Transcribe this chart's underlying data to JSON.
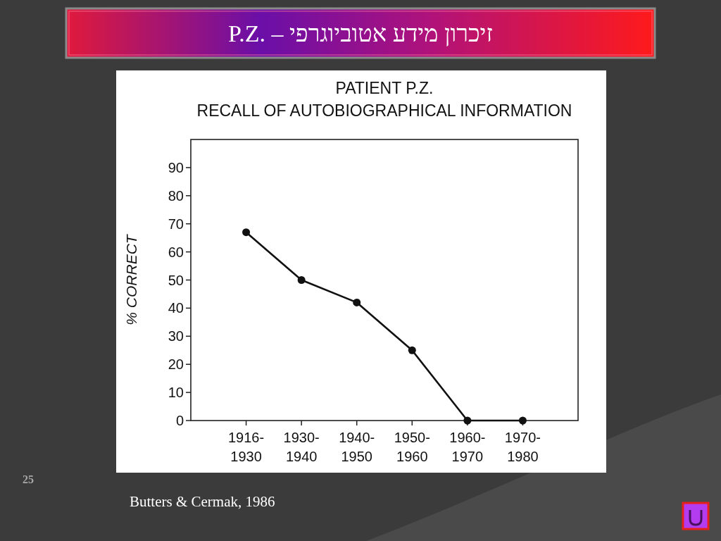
{
  "chart_data": {
    "type": "line",
    "title": "P.Z. – זיכרון מידע אטוביוגרפי",
    "subtitle": "PATIENT P.Z.\nRECALL OF AUTOBIOGRAPHICAL INFORMATION",
    "ylabel": "% CORRECT",
    "categories": [
      "1916-1930",
      "1930-1940",
      "1940-1950",
      "1950-1960",
      "1960-1970",
      "1970-1980"
    ],
    "values": [
      67,
      50,
      42,
      25,
      0,
      0
    ],
    "color": "#111111",
    "marker": "circle",
    "ylim": [
      0,
      100
    ],
    "yticks": [
      0,
      10,
      20,
      30,
      40,
      50,
      60,
      70,
      80,
      90
    ],
    "annotations": [
      "Butters & Cermak, 1986",
      "25"
    ]
  }
}
